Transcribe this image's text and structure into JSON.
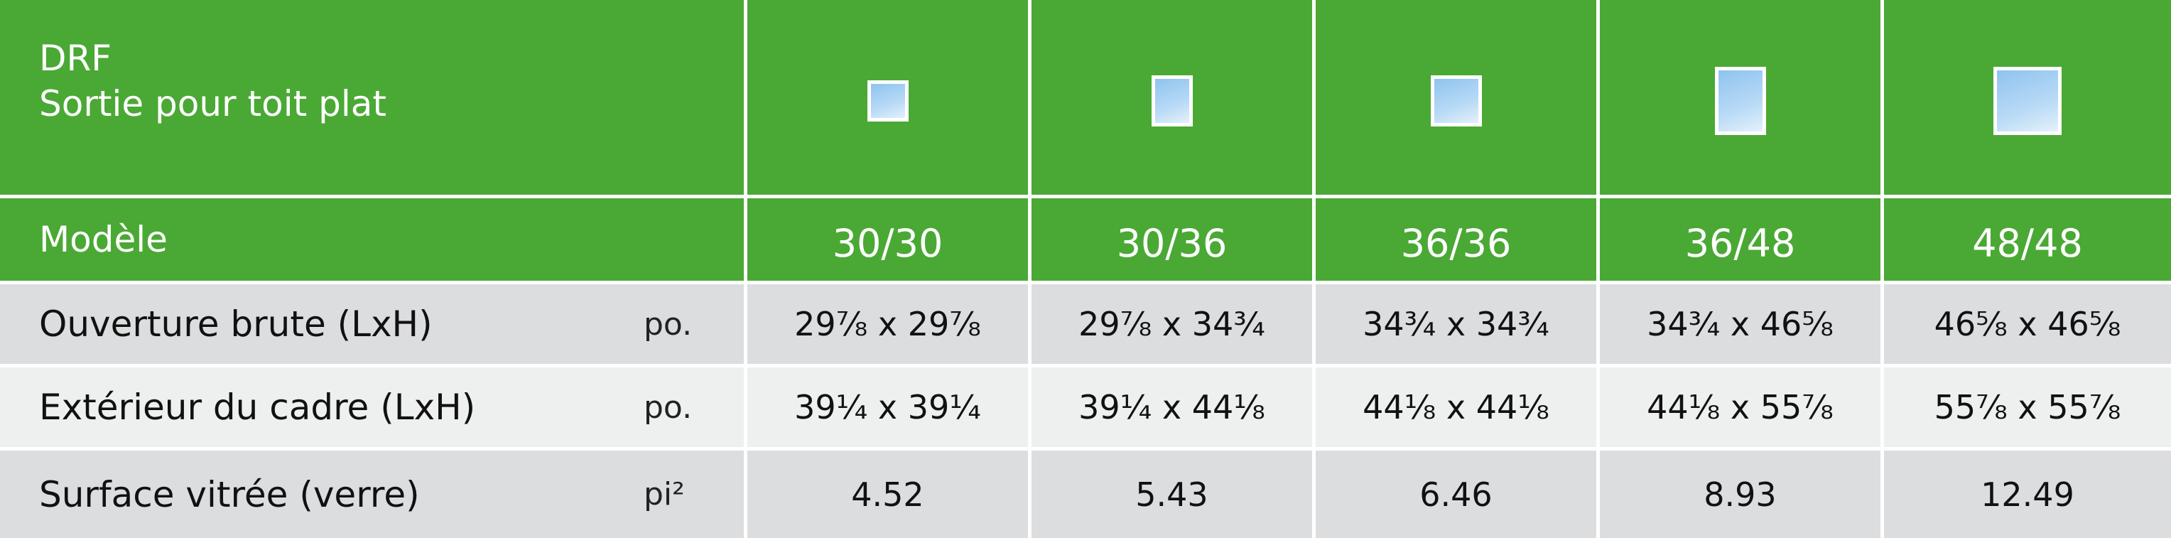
{
  "header": {
    "title": "DRF",
    "subtitle": "Sortie pour toit plat"
  },
  "table": {
    "model_label": "Modèle",
    "models": [
      "30/30",
      "30/36",
      "36/36",
      "36/48",
      "48/48"
    ],
    "rows": [
      {
        "label": "Ouverture brute (LxH)",
        "unit": "po.",
        "values": [
          "29⅞ x 29⅞",
          "29⅞ x 34¾",
          "34¾ x 34¾",
          "34¾ x 46⅝",
          "46⅝ x 46⅝"
        ]
      },
      {
        "label": "Extérieur du cadre (LxH)",
        "unit": "po.",
        "values": [
          "39¼ x 39¼",
          "39¼ x 44⅛",
          "44⅛ x 44⅛",
          "44⅛ x 55⅞",
          "55⅞ x 55⅞"
        ]
      },
      {
        "label": "Surface vitrée (verre)",
        "unit": "pi²",
        "values": [
          "4.52",
          "5.43",
          "6.46",
          "8.93",
          "12.49"
        ]
      }
    ]
  }
}
